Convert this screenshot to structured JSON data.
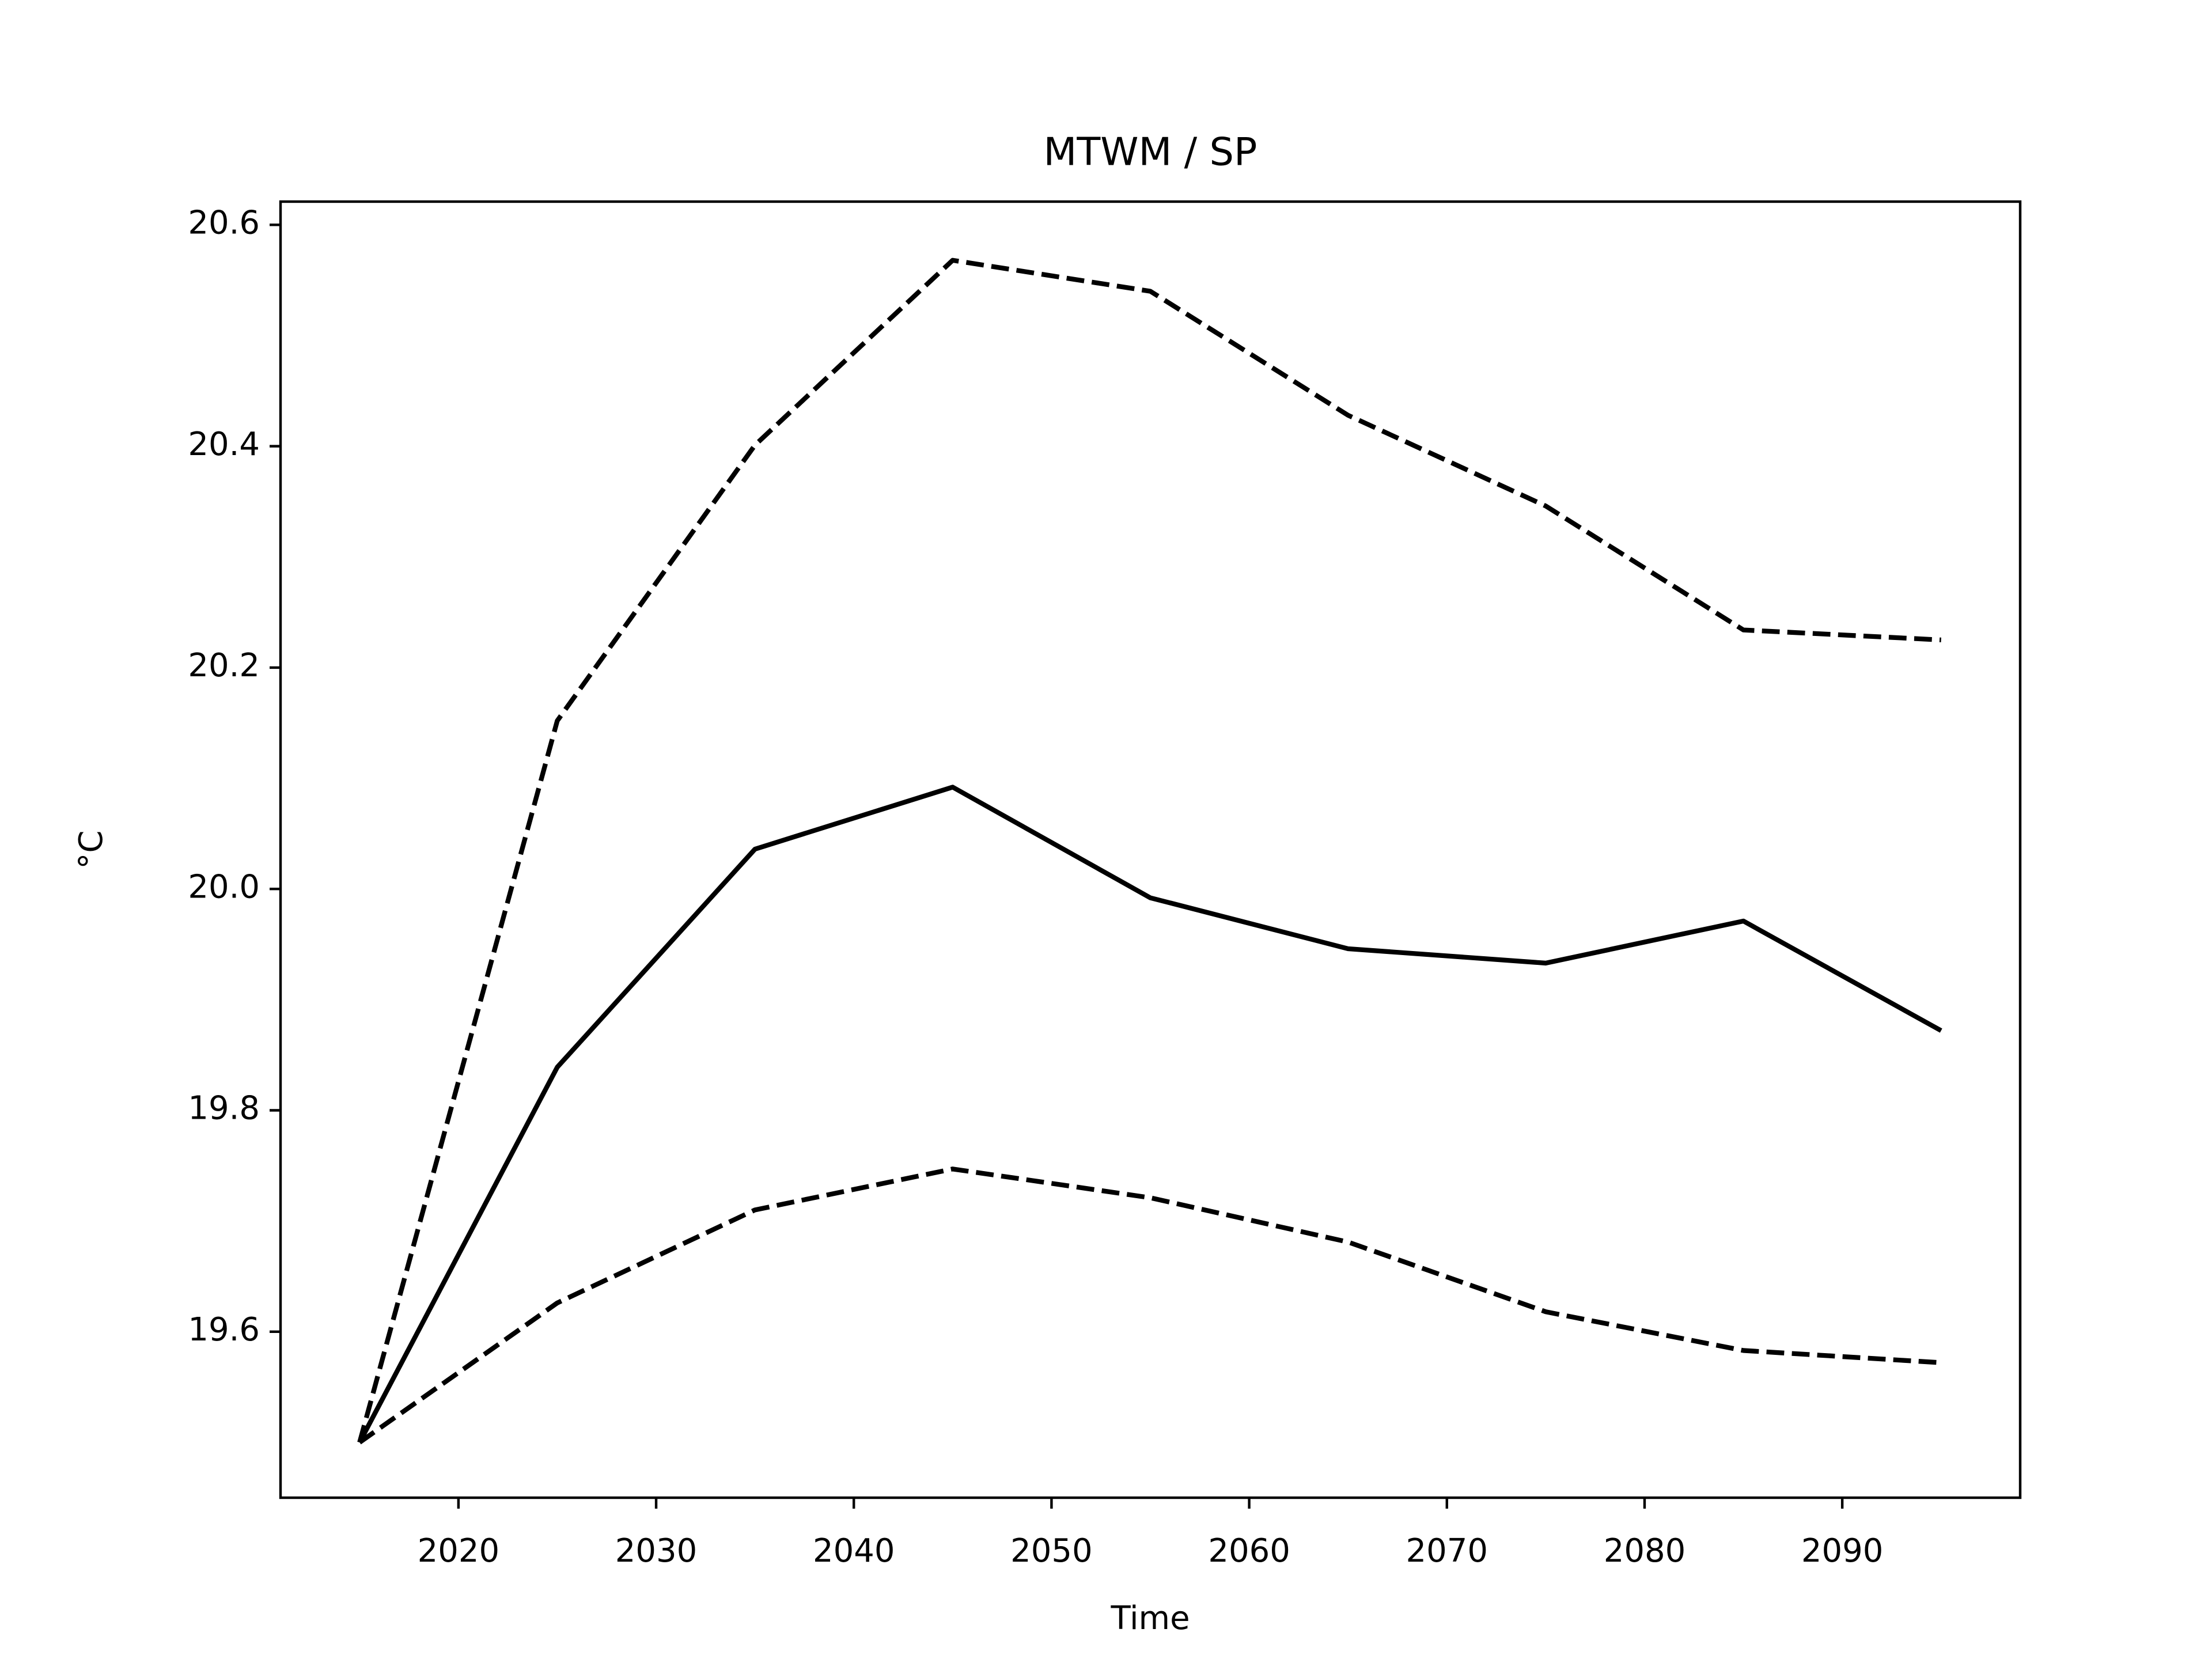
{
  "chart_data": {
    "type": "line",
    "title": "MTWM / SP",
    "xlabel": "Time",
    "ylabel": "°C",
    "x": [
      2015,
      2025,
      2035,
      2045,
      2055,
      2065,
      2075,
      2085,
      2095
    ],
    "series": [
      {
        "color": "#000000",
        "linestyle": "solid",
        "values": [
          19.5,
          19.839,
          20.036,
          20.092,
          19.992,
          19.946,
          19.933,
          19.971,
          19.872
        ]
      },
      {
        "color": "#000000",
        "linestyle": "dashed",
        "values": [
          19.5,
          20.152,
          20.401,
          20.568,
          20.54,
          20.428,
          20.346,
          20.234,
          20.225
        ]
      },
      {
        "color": "#000000",
        "linestyle": "dashed",
        "values": [
          19.5,
          19.626,
          19.71,
          19.747,
          19.721,
          19.681,
          19.618,
          19.583,
          19.572
        ]
      }
    ],
    "xlim": [
      2011,
      2099
    ],
    "xticks": [
      2020,
      2030,
      2040,
      2050,
      2060,
      2070,
      2080,
      2090
    ],
    "ylim": [
      19.45,
      20.621
    ],
    "yticks": [
      {
        "value": 19.6,
        "label": "19.6"
      },
      {
        "value": 19.8,
        "label": "19.8"
      },
      {
        "value": 20.0,
        "label": "20.0"
      },
      {
        "value": 20.2,
        "label": "20.2"
      },
      {
        "value": 20.4,
        "label": "20.4"
      },
      {
        "value": 20.6,
        "label": "20.6"
      }
    ],
    "grid": false
  }
}
